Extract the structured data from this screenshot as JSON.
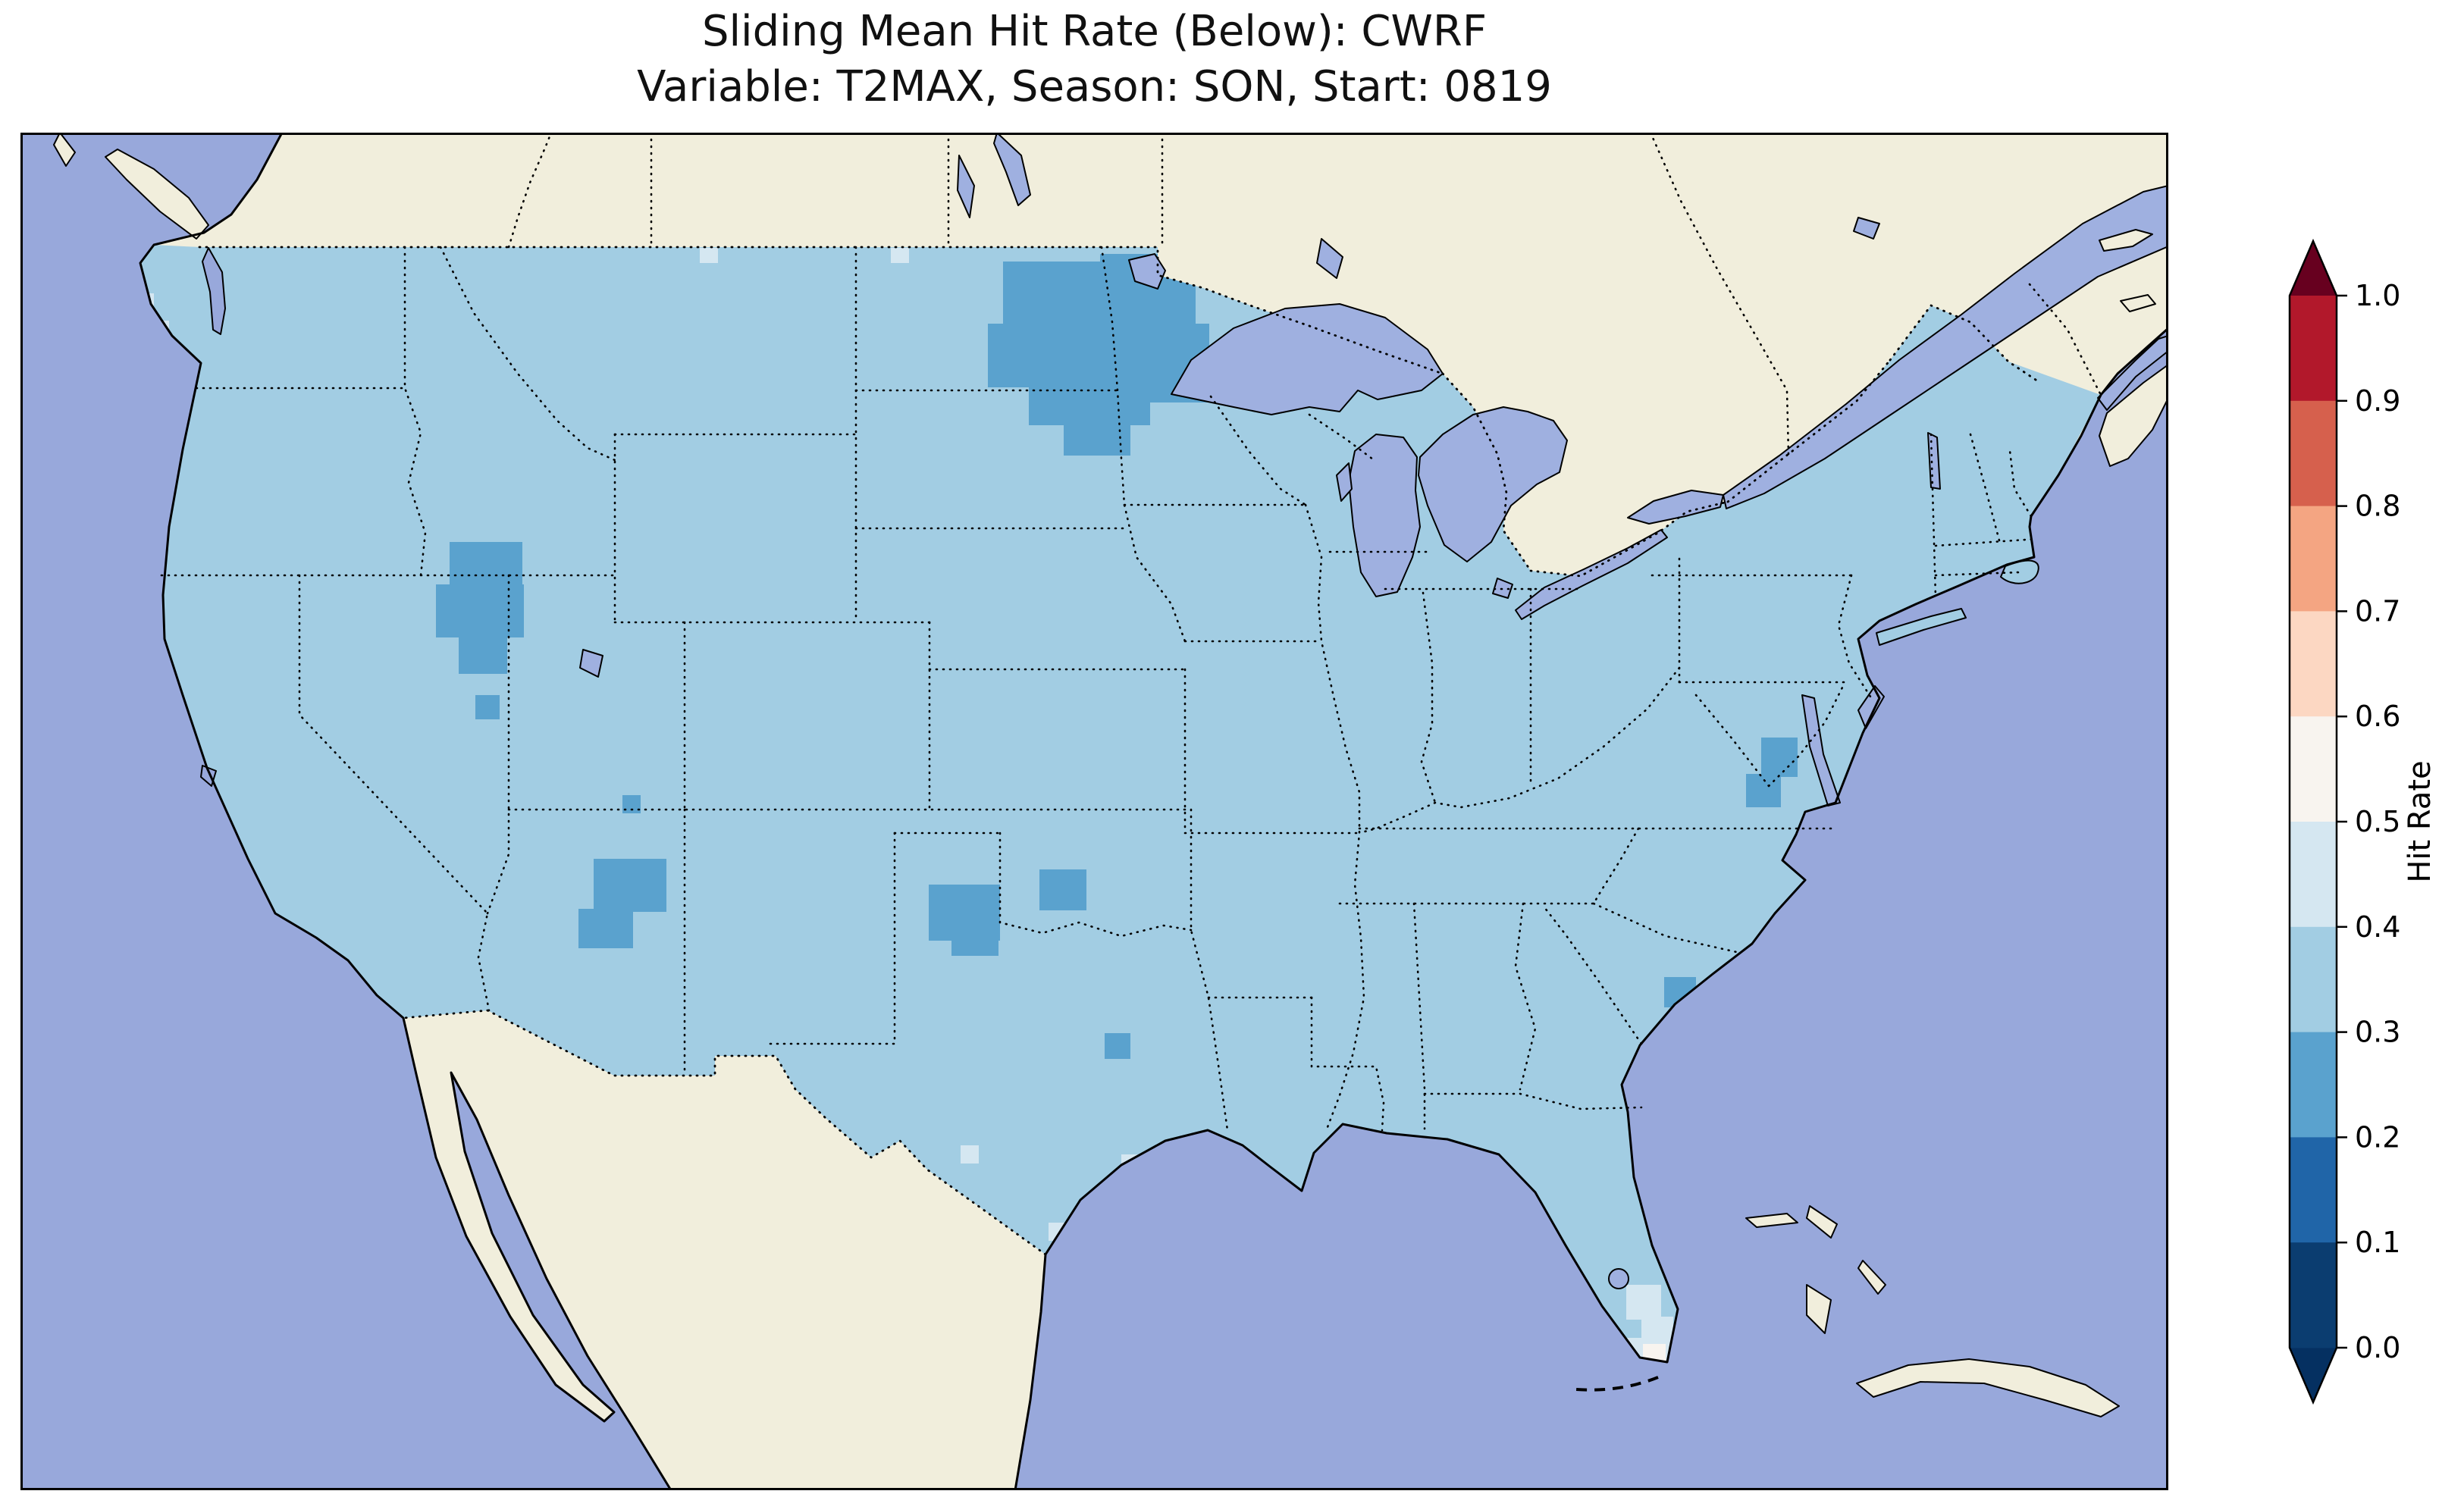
{
  "title": {
    "line1": "Sliding Mean Hit Rate (Below): CWRF",
    "line2": "Variable: T2MAX, Season: SON, Start: 0819"
  },
  "colorbar": {
    "label": "Hit Rate",
    "ticks_top_to_bottom": [
      "1.0",
      "0.9",
      "0.8",
      "0.7",
      "0.6",
      "0.5",
      "0.4",
      "0.3",
      "0.2",
      "0.1",
      "0.0"
    ],
    "segment_colors_bottom_to_top": [
      "#0b3d70",
      "#2065a8",
      "#5aa2ce",
      "#a2cde3",
      "#d5e7f1",
      "#f8f4ef",
      "#fcd7c2",
      "#f4a582",
      "#d6604d",
      "#b2182b"
    ],
    "under_arrow_color": "#053061",
    "over_arrow_color": "#67001f"
  },
  "colors": {
    "ocean": "#98a8db",
    "lake": "#9fb0e0",
    "land_non_us": "#f1eedc",
    "us_fill": "#a2cde3",
    "frame": "#000000"
  },
  "chart_data": {
    "type": "heatmap",
    "subtype": "geographic-choropleth",
    "title": "Sliding Mean Hit Rate (Below): CWRF",
    "subtitle": "Variable: T2MAX, Season: SON, Start: 0819",
    "variable": "T2MAX",
    "season": "SON",
    "start": "0819",
    "model": "CWRF",
    "colorbar_label": "Hit Rate",
    "colorbar_range": [
      0.0,
      1.0
    ],
    "colorbar_tick_step": 0.1,
    "colormap": "RdBu_r, 10 discrete bins with pointed extend arrows at both ends",
    "map_region": "Contiguous United States with southern Canada, northern Mexico, Gulf of Mexico and western Atlantic; ocean and non-US land unshaded",
    "regions": [
      {
        "area": "Most of the contiguous US",
        "hit_rate": "0.3-0.4"
      },
      {
        "area": "Northern Minnesota to western Lake Superior (large patch)",
        "hit_rate": "0.2-0.3"
      },
      {
        "area": "Northeastern Nevada",
        "hit_rate": "0.2-0.3"
      },
      {
        "area": "South-central Utah",
        "hit_rate": "0.2-0.3"
      },
      {
        "area": "Southwest Oklahoma / northwest Texas",
        "hit_rate": "0.2-0.3"
      },
      {
        "area": "Central-east Oklahoma (small patch)",
        "hit_rate": "0.2-0.3"
      },
      {
        "area": "Small spot in south-central Texas",
        "hit_rate": "0.2-0.3"
      },
      {
        "area": "Coastal Virginia near Chesapeake Bay mouth",
        "hit_rate": "0.2-0.3"
      },
      {
        "area": "Coastal South Carolina / Georgia",
        "hit_rate": "0.2-0.3"
      },
      {
        "area": "Southern Florida",
        "hit_rate": "0.4-0.5"
      },
      {
        "area": "Florida Keys vicinity (isolated cells)",
        "hit_rate": "0.5-0.6"
      },
      {
        "area": "Scattered coastal-margin cells (Pacific NW coast, Gulf coast, northern border)",
        "hit_rate": "0.4-0.5"
      }
    ],
    "patches": [
      {
        "hit_rate": "0.2-0.3",
        "rects": [
          [
            1296,
            170,
            168,
            92
          ],
          [
            1276,
            252,
            210,
            84
          ],
          [
            1424,
            160,
            126,
            96
          ],
          [
            1464,
            252,
            104,
            104
          ],
          [
            1330,
            330,
            160,
            56
          ],
          [
            1376,
            384,
            88,
            42
          ],
          [
            1552,
            296,
            52,
            44
          ],
          [
            566,
            540,
            96,
            62
          ],
          [
            548,
            596,
            116,
            70
          ],
          [
            578,
            662,
            64,
            52
          ],
          [
            600,
            742,
            32,
            32
          ],
          [
            756,
            958,
            96,
            70
          ],
          [
            736,
            1024,
            72,
            52
          ],
          [
            794,
            874,
            24,
            24
          ],
          [
            1198,
            992,
            94,
            74
          ],
          [
            1228,
            1054,
            62,
            32
          ],
          [
            1344,
            972,
            62,
            54
          ],
          [
            1430,
            1188,
            34,
            34
          ],
          [
            2296,
            798,
            48,
            52
          ],
          [
            2276,
            846,
            46,
            44
          ],
          [
            2168,
            1114,
            42,
            40
          ],
          [
            2192,
            1152,
            40,
            40
          ]
        ]
      },
      {
        "hit_rate": "0.4-0.5",
        "rects": [
          [
            2118,
            1520,
            46,
            46
          ],
          [
            2138,
            1562,
            42,
            58
          ],
          [
            2098,
            1590,
            40,
            36
          ],
          [
            1356,
            1438,
            24,
            24
          ],
          [
            1240,
            1336,
            24,
            24
          ],
          [
            1452,
            1348,
            24,
            24
          ],
          [
            156,
            248,
            40,
            40
          ],
          [
            148,
            212,
            28,
            28
          ],
          [
            896,
            152,
            24,
            20
          ],
          [
            1148,
            152,
            24,
            20
          ]
        ]
      },
      {
        "hit_rate": "0.5-0.6",
        "rects": [
          [
            2054,
            1616,
            22,
            22
          ],
          [
            2090,
            1620,
            22,
            22
          ],
          [
            2126,
            1624,
            22,
            22
          ],
          [
            2140,
            1598,
            30,
            30
          ]
        ]
      }
    ]
  }
}
